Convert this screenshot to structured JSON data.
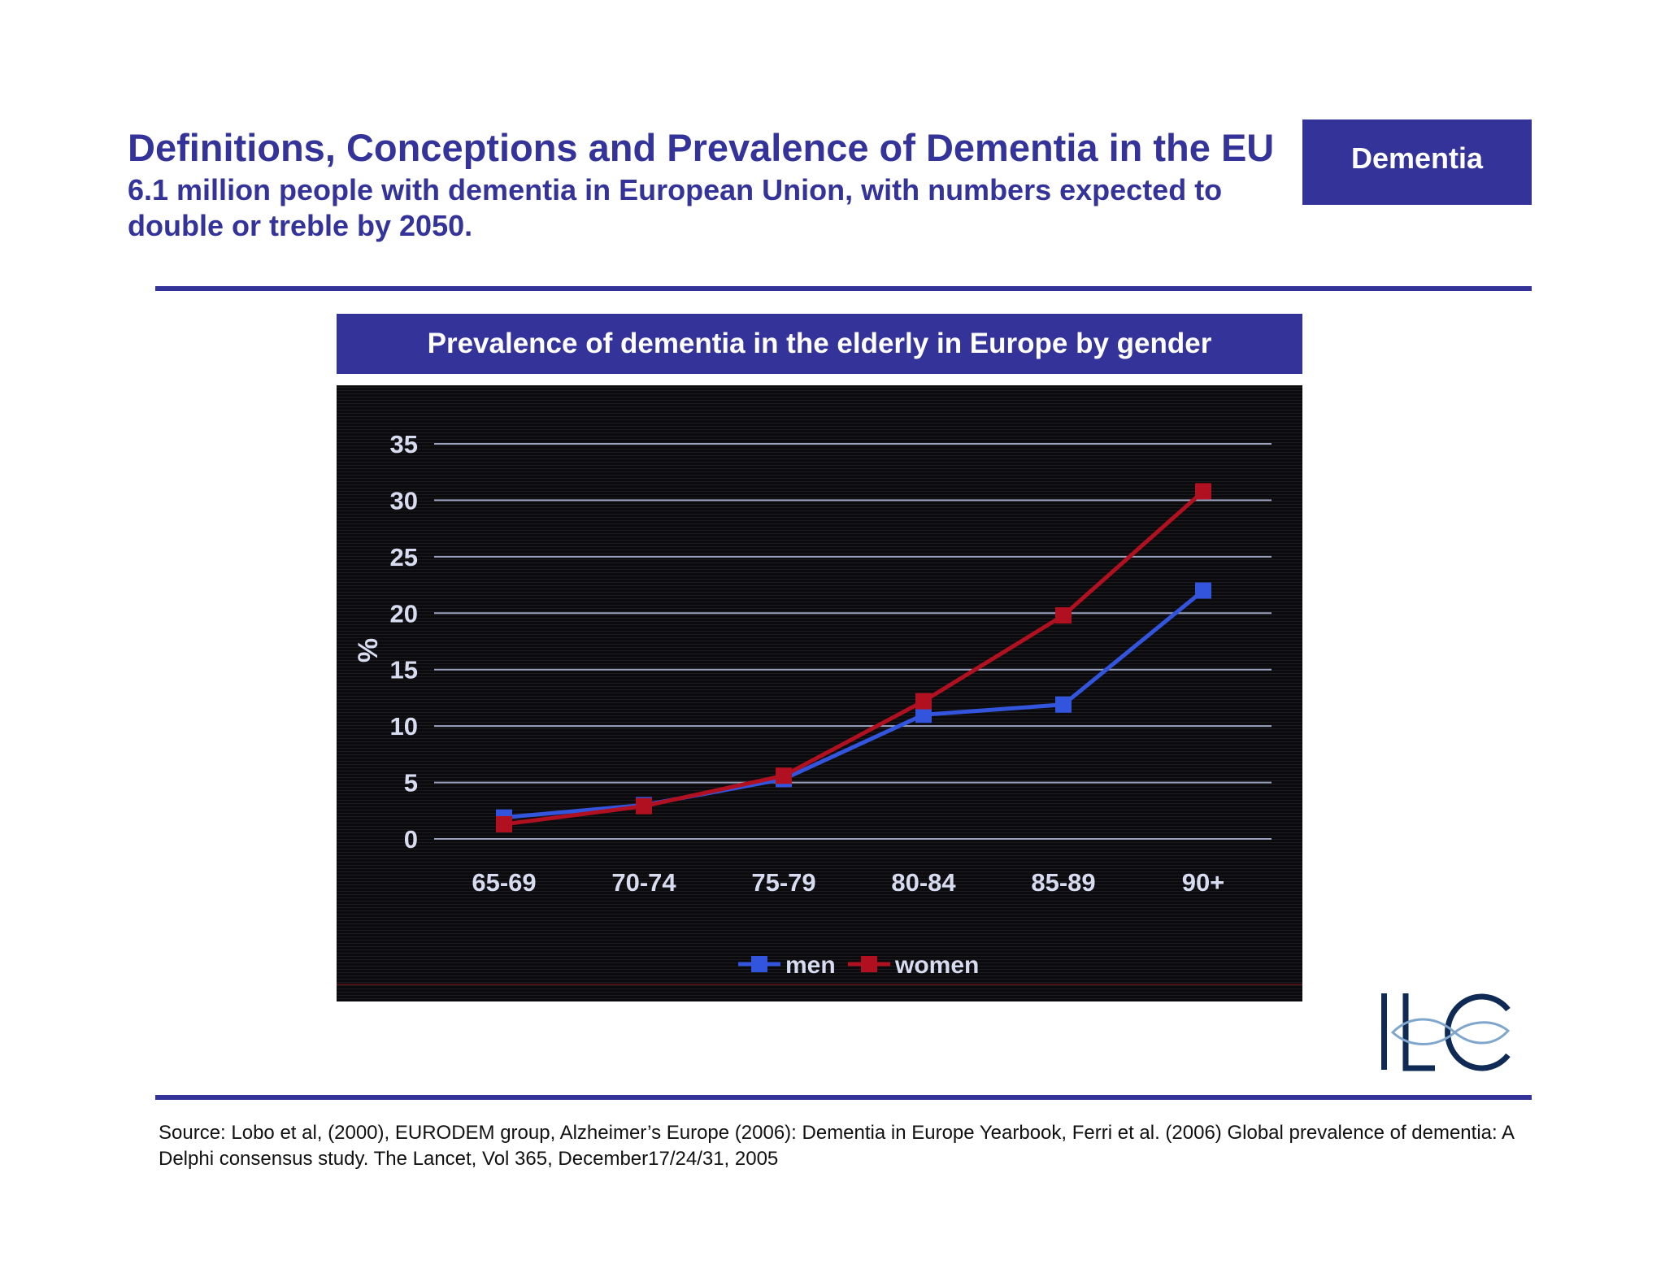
{
  "header": {
    "title": "Definitions, Conceptions and Prevalence of Dementia in the EU",
    "subtitle": "6.1 million people with dementia in European Union, with numbers expected to double or treble by 2050.",
    "tag": "Dementia"
  },
  "colors": {
    "brand": "#333399",
    "chart_background": "#0b0b0d",
    "men": "#3355dd",
    "women": "#b01020"
  },
  "chart_data": {
    "type": "line",
    "title": "Prevalence of dementia in the elderly in Europe by gender",
    "xlabel": "",
    "ylabel": "%",
    "categories": [
      "65-69",
      "70-74",
      "75-79",
      "80-84",
      "85-89",
      "90+"
    ],
    "yticks": [
      0,
      5,
      10,
      15,
      20,
      25,
      30,
      35
    ],
    "ylim": [
      0,
      35
    ],
    "grid": true,
    "legend_position": "bottom-center",
    "series": [
      {
        "name": "men",
        "values": [
          1.9,
          3.0,
          5.3,
          11.0,
          11.9,
          22.0
        ]
      },
      {
        "name": "women",
        "values": [
          1.3,
          2.9,
          5.6,
          12.2,
          19.8,
          30.8
        ]
      }
    ]
  },
  "logo": {
    "text": "ILC"
  },
  "footer": {
    "source": "Source:  Lobo et al, (2000), EURODEM group, Alzheimer’s Europe (2006): Dementia in Europe Yearbook, Ferri et al. (2006) Global prevalence of dementia: A Delphi consensus study. The Lancet, Vol 365, December17/24/31, 2005"
  }
}
